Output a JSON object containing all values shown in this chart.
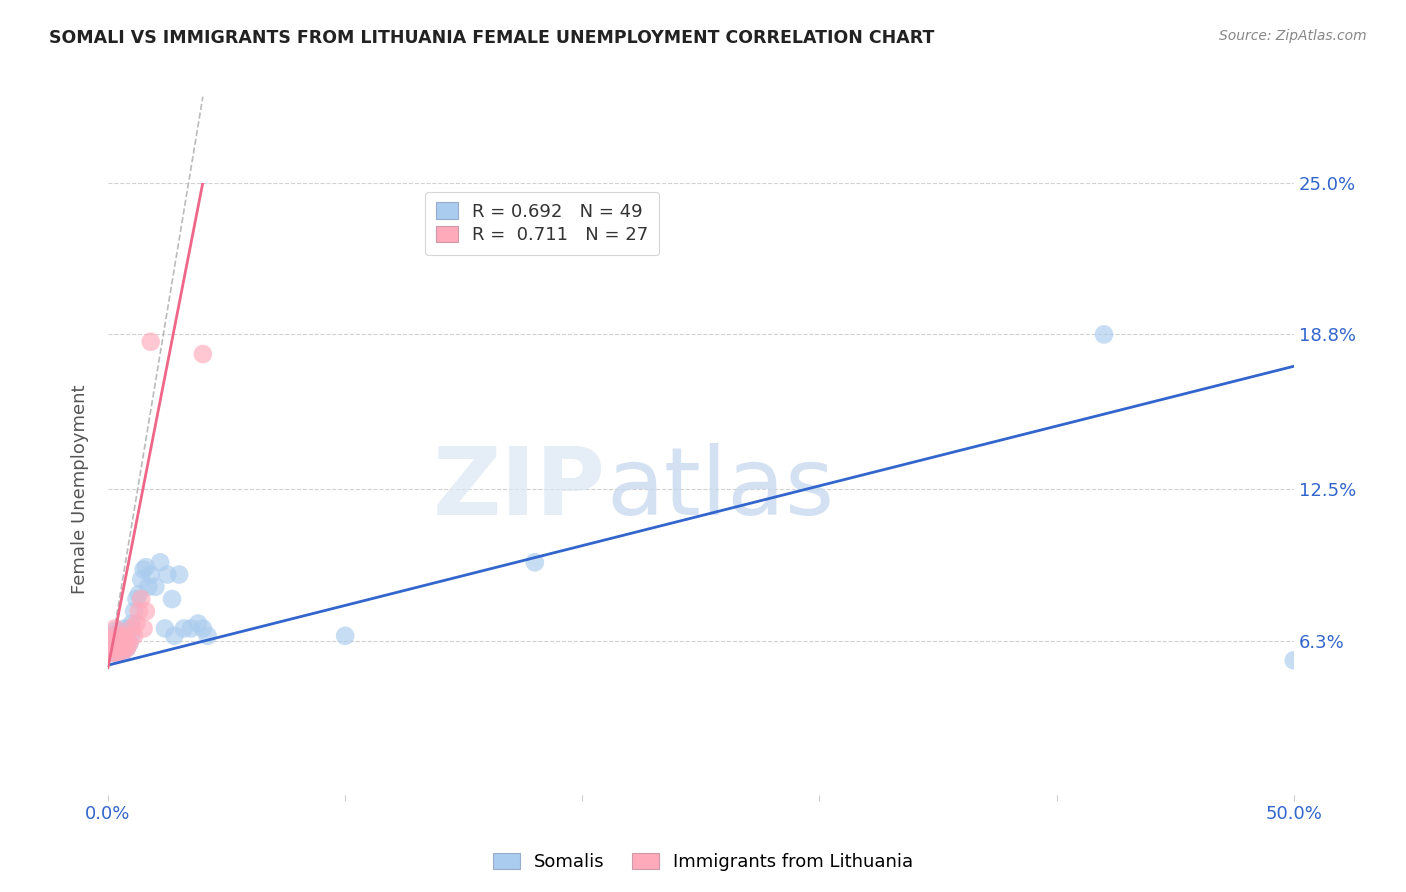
{
  "title": "SOMALI VS IMMIGRANTS FROM LITHUANIA FEMALE UNEMPLOYMENT CORRELATION CHART",
  "source": "Source: ZipAtlas.com",
  "ylabel": "Female Unemployment",
  "xlim": [
    0.0,
    0.5
  ],
  "ylim": [
    0.0,
    0.25
  ],
  "grid_color": "#cccccc",
  "somali_color": "#aaccee",
  "lithuania_color": "#ffaabb",
  "somali_line_color": "#3366cc",
  "lithuania_line_color": "#ee6688",
  "legend_R_somali": "0.692",
  "legend_N_somali": "49",
  "legend_R_lithuania": "0.711",
  "legend_N_lithuania": "27",
  "somali_x": [
    0.001,
    0.001,
    0.002,
    0.002,
    0.002,
    0.003,
    0.003,
    0.003,
    0.004,
    0.004,
    0.004,
    0.005,
    0.005,
    0.005,
    0.006,
    0.006,
    0.007,
    0.007,
    0.007,
    0.008,
    0.008,
    0.009,
    0.009,
    0.01,
    0.01,
    0.011,
    0.012,
    0.013,
    0.014,
    0.015,
    0.016,
    0.017,
    0.018,
    0.02,
    0.022,
    0.024,
    0.025,
    0.027,
    0.028,
    0.03,
    0.032,
    0.035,
    0.038,
    0.04,
    0.042,
    0.1,
    0.18,
    0.42,
    0.5
  ],
  "somali_y": [
    0.06,
    0.063,
    0.058,
    0.062,
    0.065,
    0.06,
    0.063,
    0.067,
    0.058,
    0.062,
    0.065,
    0.06,
    0.063,
    0.067,
    0.058,
    0.065,
    0.06,
    0.063,
    0.068,
    0.06,
    0.065,
    0.062,
    0.068,
    0.065,
    0.07,
    0.075,
    0.08,
    0.082,
    0.088,
    0.092,
    0.093,
    0.085,
    0.09,
    0.085,
    0.095,
    0.068,
    0.09,
    0.08,
    0.065,
    0.09,
    0.068,
    0.068,
    0.07,
    0.068,
    0.065,
    0.065,
    0.095,
    0.188,
    0.055
  ],
  "lithuania_x": [
    0.001,
    0.001,
    0.002,
    0.002,
    0.003,
    0.003,
    0.003,
    0.004,
    0.004,
    0.005,
    0.005,
    0.006,
    0.006,
    0.007,
    0.007,
    0.008,
    0.008,
    0.009,
    0.01,
    0.011,
    0.012,
    0.013,
    0.014,
    0.015,
    0.016,
    0.018,
    0.04
  ],
  "lithuania_y": [
    0.06,
    0.063,
    0.058,
    0.062,
    0.06,
    0.065,
    0.068,
    0.058,
    0.062,
    0.06,
    0.065,
    0.058,
    0.063,
    0.06,
    0.065,
    0.06,
    0.063,
    0.062,
    0.068,
    0.065,
    0.07,
    0.075,
    0.08,
    0.068,
    0.075,
    0.185,
    0.18
  ],
  "somali_trendline_x": [
    0.0,
    0.5
  ],
  "somali_trendline_y": [
    0.053,
    0.175
  ],
  "lithuania_trendline_x": [
    0.0,
    0.04
  ],
  "lithuania_trendline_y": [
    0.052,
    0.25
  ],
  "dashed_line_x": [
    0.0,
    0.04
  ],
  "dashed_line_y": [
    0.052,
    0.285
  ],
  "ytick_labels_right": [
    "25.0%",
    "18.8%",
    "12.5%",
    "6.3%"
  ],
  "ytick_vals_right": [
    0.25,
    0.188,
    0.125,
    0.063
  ]
}
